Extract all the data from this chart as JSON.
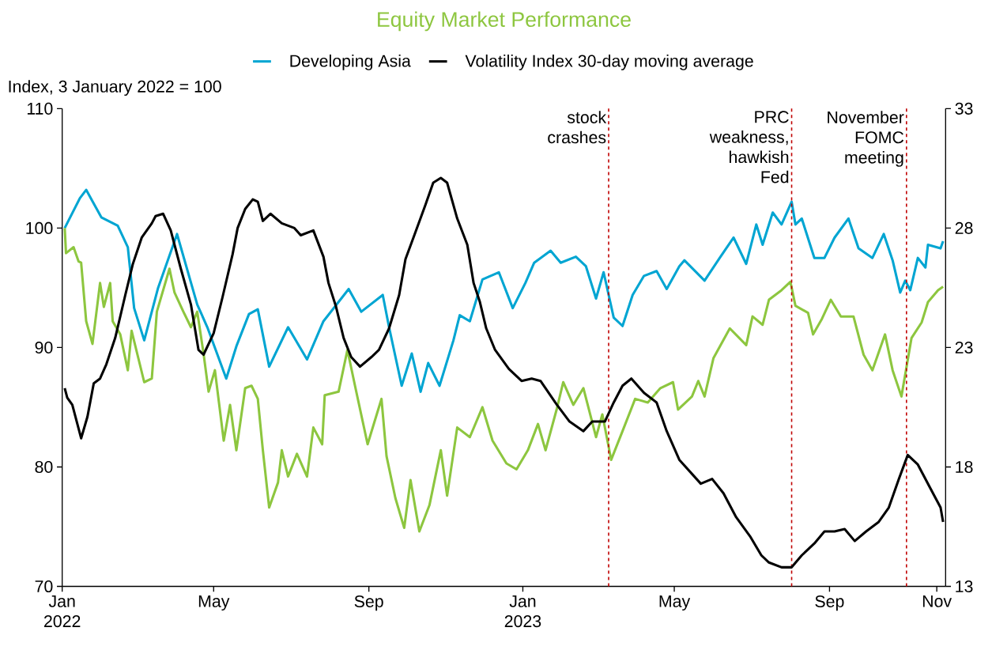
{
  "chart_data": {
    "type": "line",
    "title": "Equity Market Performance",
    "ylabel": "Index, 3 January 2022 = 100",
    "xlim": [
      "2022-01-01",
      "2023-12-02"
    ],
    "xticks": [
      {
        "value": "2022-01-01",
        "label": "Jan 2022"
      },
      {
        "value": "2022-05-01",
        "label": "May"
      },
      {
        "value": "2022-09-01",
        "label": "Sep"
      },
      {
        "value": "2023-01-01",
        "label": "Jan 2023"
      },
      {
        "value": "2023-05-01",
        "label": "May"
      },
      {
        "value": "2023-09-01",
        "label": "Sep"
      },
      {
        "value": "2023-11-25",
        "label": "Nov"
      }
    ],
    "ylim": [
      70,
      110
    ],
    "yticks": [
      70,
      80,
      90,
      100,
      110
    ],
    "y2lim": [
      13,
      33
    ],
    "y2ticks": [
      13,
      18,
      23,
      28,
      33
    ],
    "legend": "top",
    "ref_lines": [
      {
        "axis": "x",
        "value": "2023-03-10",
        "label": "stock crashes",
        "color": "#c00000",
        "line_style": "dashed"
      },
      {
        "axis": "x",
        "value": "2023-08-02",
        "label": "PRC weakness, hawkish Fed",
        "color": "#c00000",
        "line_style": "dashed"
      },
      {
        "axis": "x",
        "value": "2023-11-01",
        "label": "November FOMC meeting",
        "color": "#c00000",
        "line_style": "dashed"
      }
    ],
    "series": [
      {
        "name": "Developing Asia",
        "color": "#00a5d2",
        "x": [
          "2022-01-03",
          "2022-01-15",
          "2022-01-20",
          "2022-02-01",
          "2022-02-14",
          "2022-02-22",
          "2022-02-27",
          "2022-03-07",
          "2022-03-18",
          "2022-04-02",
          "2022-04-18",
          "2022-04-26",
          "2022-05-11",
          "2022-05-19",
          "2022-05-29",
          "2022-06-05",
          "2022-06-14",
          "2022-06-29",
          "2022-07-14",
          "2022-07-27",
          "2022-08-16",
          "2022-08-26",
          "2022-09-12",
          "2022-09-17",
          "2022-09-27",
          "2022-10-05",
          "2022-10-12",
          "2022-10-18",
          "2022-10-27",
          "2022-11-07",
          "2022-11-12",
          "2022-11-20",
          "2022-11-30",
          "2022-12-13",
          "2022-12-24",
          "2023-01-03",
          "2023-01-10",
          "2023-01-23",
          "2023-01-31",
          "2023-02-12",
          "2023-02-20",
          "2023-02-28",
          "2023-03-06",
          "2023-03-14",
          "2023-03-21",
          "2023-03-29",
          "2023-04-07",
          "2023-04-17",
          "2023-04-25",
          "2023-05-05",
          "2023-05-09",
          "2023-05-25",
          "2023-06-06",
          "2023-06-17",
          "2023-06-27",
          "2023-07-05",
          "2023-07-10",
          "2023-07-18",
          "2023-07-25",
          "2023-08-02",
          "2023-08-05",
          "2023-08-10",
          "2023-08-20",
          "2023-08-28",
          "2023-09-05",
          "2023-09-16",
          "2023-09-24",
          "2023-10-05",
          "2023-10-14",
          "2023-10-21",
          "2023-10-27",
          "2023-10-31",
          "2023-11-04",
          "2023-11-10",
          "2023-11-16",
          "2023-11-18",
          "2023-11-28",
          "2023-11-30"
        ],
        "values": [
          100,
          102.5,
          103.2,
          100.9,
          100.2,
          98.4,
          93.3,
          90.6,
          95,
          99.5,
          93.6,
          91.7,
          87.4,
          90.1,
          92.8,
          93.2,
          88.4,
          91.7,
          89,
          92.2,
          94.9,
          93,
          94.4,
          91.7,
          86.8,
          89.5,
          86.3,
          88.7,
          86.8,
          90.6,
          92.7,
          92.2,
          95.7,
          96.3,
          93.3,
          95.4,
          97.1,
          98.1,
          97.1,
          97.6,
          96.8,
          94.1,
          96.3,
          92.5,
          91.8,
          94.4,
          96,
          96.4,
          94.9,
          96.8,
          97.3,
          95.6,
          97.5,
          99.2,
          97,
          100.3,
          98.6,
          101.3,
          100.3,
          102.2,
          100.3,
          100.8,
          97.5,
          97.5,
          99.2,
          100.8,
          98.3,
          97.5,
          99.5,
          97.3,
          94.6,
          95.6,
          94.8,
          97.5,
          96.7,
          98.6,
          98.3,
          98.9
        ]
      },
      {
        "color": "#8dc63f",
        "x": [
          "2022-01-03",
          "2022-01-04",
          "2022-01-10",
          "2022-01-14",
          "2022-01-16",
          "2022-01-20",
          "2022-01-25",
          "2022-01-31",
          "2022-02-03",
          "2022-02-08",
          "2022-02-10",
          "2022-02-16",
          "2022-02-22",
          "2022-02-25",
          "2022-03-07",
          "2022-03-13",
          "2022-03-17",
          "2022-03-27",
          "2022-03-31",
          "2022-04-07",
          "2022-04-13",
          "2022-04-18",
          "2022-04-23",
          "2022-04-27",
          "2022-05-02",
          "2022-05-09",
          "2022-05-14",
          "2022-05-19",
          "2022-05-26",
          "2022-05-31",
          "2022-06-05",
          "2022-06-09",
          "2022-06-14",
          "2022-06-21",
          "2022-06-24",
          "2022-06-29",
          "2022-07-06",
          "2022-07-14",
          "2022-07-19",
          "2022-07-26",
          "2022-07-28",
          "2022-08-08",
          "2022-08-15",
          "2022-08-21",
          "2022-08-31",
          "2022-09-11",
          "2022-09-15",
          "2022-09-22",
          "2022-09-29",
          "2022-10-04",
          "2022-10-11",
          "2022-10-19",
          "2022-10-28",
          "2022-11-02",
          "2022-11-10",
          "2022-11-20",
          "2022-11-30",
          "2022-12-08",
          "2022-12-19",
          "2022-12-27",
          "2023-01-05",
          "2023-01-13",
          "2023-01-19",
          "2023-01-28",
          "2023-02-02",
          "2023-02-10",
          "2023-02-18",
          "2023-02-28",
          "2023-03-05",
          "2023-03-12",
          "2023-03-21",
          "2023-03-31",
          "2023-04-10",
          "2023-04-20",
          "2023-04-30",
          "2023-05-04",
          "2023-05-15",
          "2023-05-20",
          "2023-05-25",
          "2023-06-01",
          "2023-06-14",
          "2023-06-27",
          "2023-07-02",
          "2023-07-10",
          "2023-07-15",
          "2023-07-25",
          "2023-08-01",
          "2023-08-05",
          "2023-08-15",
          "2023-08-19",
          "2023-08-26",
          "2023-09-02",
          "2023-09-10",
          "2023-09-20",
          "2023-09-28",
          "2023-10-05",
          "2023-10-15",
          "2023-10-21",
          "2023-10-28",
          "2023-11-05",
          "2023-11-13",
          "2023-11-18",
          "2023-11-26",
          "2023-11-30"
        ],
        "values": [
          100,
          97.9,
          98.4,
          97.2,
          97.1,
          92.2,
          90.3,
          95.4,
          93.4,
          95.4,
          92.2,
          91.1,
          88.1,
          91.4,
          87.1,
          87.4,
          93,
          96.6,
          94.6,
          93,
          91.7,
          93,
          89.5,
          86.3,
          88.1,
          82.2,
          85.2,
          81.4,
          86.6,
          86.8,
          85.7,
          81.4,
          76.6,
          78.7,
          81.4,
          79.2,
          81.1,
          79.2,
          83.3,
          81.9,
          86,
          86.3,
          89.8,
          86.8,
          81.9,
          85.7,
          80.9,
          77.4,
          74.9,
          78.9,
          74.6,
          76.8,
          81.4,
          77.6,
          83.3,
          82.5,
          85,
          82.2,
          80.3,
          79.8,
          81.4,
          83.6,
          81.4,
          84.9,
          87.1,
          85.2,
          86.6,
          82.5,
          84.4,
          80.6,
          83,
          85.7,
          85.4,
          86.6,
          87.1,
          84.8,
          85.9,
          87.2,
          85.9,
          89.1,
          91.6,
          90.2,
          92.6,
          91.9,
          94,
          94.8,
          95.5,
          93.5,
          92.9,
          91.1,
          92.4,
          94,
          92.6,
          92.6,
          89.4,
          88.1,
          91.1,
          88.1,
          85.9,
          90.8,
          92.1,
          93.8,
          94.8,
          95.1
        ]
      },
      {
        "name": "Volatility Index 30-day moving average",
        "color": "#000000",
        "axis": "y2",
        "x": [
          "2022-01-03",
          "2022-01-05",
          "2022-01-09",
          "2022-01-16",
          "2022-01-21",
          "2022-01-26",
          "2022-01-31",
          "2022-02-05",
          "2022-02-12",
          "2022-02-20",
          "2022-02-26",
          "2022-03-05",
          "2022-03-13",
          "2022-03-16",
          "2022-03-22",
          "2022-03-28",
          "2022-04-05",
          "2022-04-13",
          "2022-04-19",
          "2022-04-23",
          "2022-05-01",
          "2022-05-08",
          "2022-05-16",
          "2022-05-20",
          "2022-05-26",
          "2022-06-01",
          "2022-06-05",
          "2022-06-09",
          "2022-06-15",
          "2022-06-24",
          "2022-07-04",
          "2022-07-09",
          "2022-07-19",
          "2022-07-27",
          "2022-07-31",
          "2022-08-06",
          "2022-08-12",
          "2022-08-18",
          "2022-08-25",
          "2022-09-03",
          "2022-09-09",
          "2022-09-17",
          "2022-09-25",
          "2022-09-30",
          "2022-10-07",
          "2022-10-16",
          "2022-10-22",
          "2022-10-28",
          "2022-11-02",
          "2022-11-10",
          "2022-11-18",
          "2022-11-23",
          "2022-11-28",
          "2022-12-03",
          "2022-12-10",
          "2022-12-21",
          "2022-12-31",
          "2023-01-08",
          "2023-01-15",
          "2023-01-28",
          "2023-02-07",
          "2023-02-18",
          "2023-02-25",
          "2023-03-07",
          "2023-03-14",
          "2023-03-21",
          "2023-03-28",
          "2023-04-07",
          "2023-04-17",
          "2023-04-25",
          "2023-05-05",
          "2023-05-22",
          "2023-05-31",
          "2023-06-09",
          "2023-06-19",
          "2023-06-30",
          "2023-07-09",
          "2023-07-15",
          "2023-07-25",
          "2023-08-02",
          "2023-08-10",
          "2023-08-20",
          "2023-08-28",
          "2023-09-05",
          "2023-09-13",
          "2023-09-21",
          "2023-09-30",
          "2023-10-10",
          "2023-10-18",
          "2023-10-26",
          "2023-11-02",
          "2023-11-10",
          "2023-11-21",
          "2023-11-28",
          "2023-11-30"
        ],
        "values": [
          21.3,
          20.9,
          20.6,
          19.2,
          20.1,
          21.5,
          21.7,
          22.3,
          23.4,
          25.2,
          26.5,
          27.6,
          28.2,
          28.5,
          28.6,
          27.9,
          26.3,
          24.8,
          22.9,
          22.7,
          23.6,
          25.1,
          26.9,
          28,
          28.8,
          29.2,
          29.1,
          28.3,
          28.6,
          28.2,
          28,
          27.7,
          27.9,
          26.8,
          25.7,
          24.7,
          23.4,
          22.6,
          22.2,
          22.6,
          22.9,
          23.8,
          25.2,
          26.7,
          27.7,
          29,
          29.9,
          30.1,
          29.9,
          28.4,
          27.3,
          25.7,
          24.9,
          23.8,
          22.9,
          22.1,
          21.6,
          21.7,
          21.6,
          20.6,
          19.9,
          19.5,
          19.9,
          19.9,
          20.7,
          21.4,
          21.7,
          21.1,
          20.7,
          19.5,
          18.3,
          17.3,
          17.5,
          16.9,
          15.9,
          15.1,
          14.3,
          14,
          13.8,
          13.8,
          14.3,
          14.8,
          15.3,
          15.3,
          15.4,
          14.9,
          15.3,
          15.7,
          16.3,
          17.5,
          18.5,
          18.1,
          17,
          16.3,
          15.7
        ]
      }
    ]
  }
}
